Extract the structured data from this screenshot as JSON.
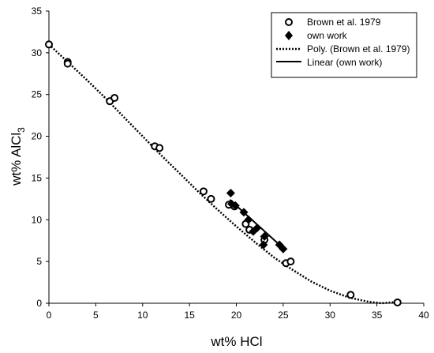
{
  "chart_data": {
    "type": "scatter",
    "xlabel": "wt% HCl",
    "ylabel_main": "wt% AlCl",
    "ylabel_sub": "3",
    "xlim": [
      0,
      40
    ],
    "ylim": [
      0,
      35
    ],
    "x_ticks": [
      0,
      5,
      10,
      15,
      20,
      25,
      30,
      35,
      40
    ],
    "y_ticks": [
      0,
      5,
      10,
      15,
      20,
      25,
      30,
      35
    ],
    "grid": false,
    "legend_position": "top-right",
    "series": [
      {
        "name": "Brown et al. 1979",
        "marker": "open-circle",
        "color": "#000000",
        "points": [
          [
            0.0,
            31.0
          ],
          [
            2.0,
            28.9
          ],
          [
            2.0,
            28.7
          ],
          [
            6.5,
            24.2
          ],
          [
            7.0,
            24.6
          ],
          [
            11.3,
            18.8
          ],
          [
            11.8,
            18.6
          ],
          [
            16.5,
            13.4
          ],
          [
            17.3,
            12.5
          ],
          [
            19.2,
            11.8
          ],
          [
            19.8,
            11.6
          ],
          [
            21.0,
            9.5
          ],
          [
            21.4,
            8.8
          ],
          [
            23.0,
            7.6
          ],
          [
            25.3,
            4.8
          ],
          [
            25.8,
            5.0
          ],
          [
            32.2,
            1.0
          ],
          [
            37.2,
            0.1
          ]
        ]
      },
      {
        "name": "own work",
        "marker": "filled-diamond",
        "color": "#000000",
        "points": [
          [
            19.4,
            13.2
          ],
          [
            19.5,
            11.9
          ],
          [
            19.9,
            11.7
          ],
          [
            20.8,
            10.9
          ],
          [
            21.3,
            10.0
          ],
          [
            21.8,
            8.6
          ],
          [
            22.2,
            9.0
          ],
          [
            22.9,
            7.0
          ],
          [
            23.0,
            8.0
          ],
          [
            24.6,
            7.0
          ],
          [
            25.0,
            6.5
          ]
        ]
      },
      {
        "name": "Poly. (Brown et al. 1979)",
        "line_style": "dotted",
        "color": "#000000",
        "curve": [
          [
            0,
            31.0
          ],
          [
            2,
            28.9
          ],
          [
            4,
            26.8
          ],
          [
            6,
            24.6
          ],
          [
            8,
            22.3
          ],
          [
            10,
            20.0
          ],
          [
            12,
            17.7
          ],
          [
            14,
            15.5
          ],
          [
            16,
            13.3
          ],
          [
            18,
            11.2
          ],
          [
            20,
            9.2
          ],
          [
            22,
            7.3
          ],
          [
            24,
            5.5
          ],
          [
            26,
            4.0
          ],
          [
            28,
            2.6
          ],
          [
            30,
            1.5
          ],
          [
            32,
            0.7
          ],
          [
            34,
            0.2
          ],
          [
            35.5,
            0.0
          ],
          [
            37,
            0.15
          ]
        ]
      },
      {
        "name": "Linear (own work)",
        "line_style": "solid",
        "color": "#000000",
        "segment": [
          [
            19.3,
            12.4
          ],
          [
            25.0,
            6.6
          ]
        ]
      }
    ]
  }
}
